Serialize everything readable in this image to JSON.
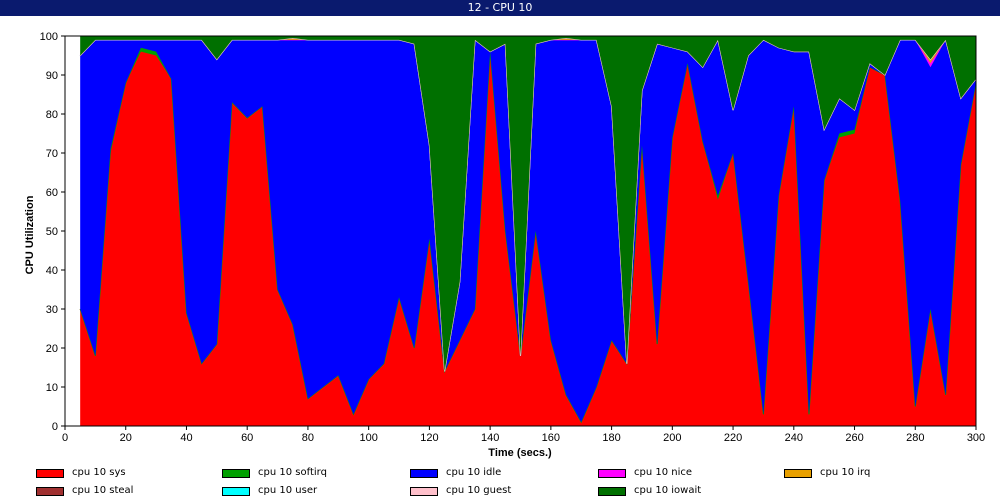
{
  "window": {
    "title": "12 - CPU 10"
  },
  "chart_data": {
    "type": "area",
    "stacked": true,
    "xlabel": "Time (secs.)",
    "ylabel": "CPU Utilization",
    "xlim": [
      0,
      300
    ],
    "ylim": [
      0,
      100
    ],
    "x_ticks": [
      0,
      20,
      40,
      60,
      80,
      100,
      120,
      140,
      160,
      180,
      200,
      220,
      240,
      260,
      280,
      300
    ],
    "y_ticks": [
      0,
      10,
      20,
      30,
      40,
      50,
      60,
      70,
      80,
      90,
      100
    ],
    "x": [
      5,
      10,
      15,
      20,
      25,
      30,
      35,
      40,
      45,
      50,
      55,
      60,
      65,
      70,
      75,
      80,
      85,
      90,
      95,
      100,
      105,
      110,
      115,
      120,
      125,
      130,
      135,
      140,
      145,
      150,
      155,
      160,
      165,
      170,
      175,
      180,
      185,
      190,
      195,
      200,
      205,
      210,
      215,
      220,
      225,
      230,
      235,
      240,
      245,
      250,
      255,
      260,
      265,
      270,
      275,
      280,
      285,
      290,
      295,
      300
    ],
    "series": [
      {
        "name": "cpu 10 sys",
        "color": "#ff0000",
        "values": [
          30,
          18,
          70,
          88,
          96,
          95,
          89,
          29,
          16,
          21,
          83,
          79,
          82,
          35,
          26,
          7,
          10,
          13,
          3,
          12,
          16,
          33,
          20,
          48,
          14,
          22,
          30,
          96,
          50,
          18,
          50,
          22,
          8,
          1,
          10,
          22,
          16,
          72,
          21,
          74,
          93,
          73,
          58,
          70,
          37,
          3,
          59,
          82,
          3,
          63,
          74,
          75,
          92,
          90,
          58,
          5,
          30,
          8,
          67,
          88
        ]
      },
      {
        "name": "cpu 10 softirq",
        "color": "#00a000",
        "values": [
          0,
          0,
          1,
          0,
          1,
          1,
          0,
          0,
          0,
          0,
          0,
          0,
          0,
          0,
          0,
          0,
          0,
          0,
          0,
          0,
          0,
          0,
          0,
          0,
          0,
          0,
          0,
          0,
          0,
          0,
          0,
          0,
          0,
          0,
          0,
          0,
          0,
          0,
          0,
          0,
          0,
          0,
          1,
          0,
          0,
          0,
          0,
          0,
          0,
          0,
          1,
          1,
          0,
          0,
          0,
          0,
          0,
          0,
          0,
          0
        ]
      },
      {
        "name": "cpu 10 idle",
        "color": "#0000ff",
        "values": [
          65,
          81,
          28,
          11,
          2,
          3,
          10,
          70,
          83,
          73,
          16,
          20,
          17,
          64,
          73,
          92,
          89,
          86,
          96,
          87,
          83,
          66,
          78,
          24,
          0,
          15,
          69,
          0,
          48,
          0,
          48,
          77,
          91,
          98,
          89,
          60,
          0,
          14,
          77,
          23,
          3,
          19,
          40,
          11,
          58,
          96,
          38,
          14,
          93,
          13,
          9,
          5,
          1,
          0,
          41,
          94,
          62,
          91,
          17,
          1
        ]
      },
      {
        "name": "cpu 10 nice",
        "color": "#ff00ff",
        "values": [
          0,
          0,
          0,
          0,
          0,
          0,
          0,
          0,
          0,
          0,
          0,
          0,
          0,
          0,
          0,
          0,
          0,
          0,
          0,
          0,
          0,
          0,
          0,
          0,
          0,
          0,
          0,
          0,
          0,
          0,
          0,
          0,
          0,
          0,
          0,
          0,
          0,
          0,
          0,
          0,
          0,
          0,
          0,
          0,
          0,
          0,
          0,
          0,
          0,
          0,
          0,
          0,
          0,
          0,
          0,
          0,
          1,
          0,
          0,
          0
        ]
      },
      {
        "name": "cpu 10 irq",
        "color": "#e8a000",
        "values": [
          0,
          0,
          0,
          0,
          0,
          0,
          0,
          0,
          0,
          0,
          0,
          0,
          0,
          0,
          0.5,
          0,
          0,
          0,
          0,
          0,
          0,
          0,
          0,
          0,
          0,
          0,
          0,
          0,
          0,
          0,
          0,
          0,
          0.5,
          0,
          0,
          0,
          0,
          0,
          0,
          0,
          0,
          0,
          0,
          0,
          0,
          0,
          0,
          0,
          0,
          0,
          0,
          0,
          0,
          0,
          0,
          0,
          1,
          0,
          0,
          0
        ]
      },
      {
        "name": "cpu 10 steal",
        "color": "#a03030",
        "values": [
          0,
          0,
          0,
          0,
          0,
          0,
          0,
          0,
          0,
          0,
          0,
          0,
          0,
          0,
          0,
          0,
          0,
          0,
          0,
          0,
          0,
          0,
          0,
          0,
          0,
          0,
          0,
          0,
          0,
          0,
          0,
          0,
          0,
          0,
          0,
          0,
          0,
          0,
          0,
          0,
          0,
          0,
          0,
          0,
          0,
          0,
          0,
          0,
          0,
          0,
          0,
          0,
          0,
          0,
          0,
          0,
          0,
          0,
          0,
          0
        ]
      },
      {
        "name": "cpu 10 user",
        "color": "#00ffff",
        "values": [
          0,
          0,
          0,
          0,
          0,
          0,
          0,
          0,
          0,
          0,
          0,
          0,
          0,
          0,
          0,
          0,
          0,
          0,
          0,
          0,
          0,
          0,
          0,
          0,
          0,
          0,
          0,
          0,
          0,
          0,
          0,
          0,
          0,
          0,
          0,
          0,
          0,
          0,
          0,
          0,
          0,
          0,
          0,
          0,
          0,
          0,
          0,
          0,
          0,
          0,
          0,
          0,
          0,
          0,
          0,
          0,
          0,
          0,
          0,
          0
        ]
      },
      {
        "name": "cpu 10 guest",
        "color": "#ffc0cb",
        "values": [
          0,
          0,
          0,
          0,
          0,
          0,
          0,
          0,
          0,
          0,
          0,
          0,
          0,
          0,
          0,
          0,
          0,
          0,
          0,
          0,
          0,
          0,
          0,
          0,
          0,
          0,
          0,
          0,
          0,
          0,
          0,
          0,
          0,
          0,
          0,
          0,
          0,
          0,
          0,
          0,
          0,
          0,
          0,
          0,
          0,
          0,
          0,
          0,
          0,
          0,
          0,
          0,
          0,
          0,
          0,
          0,
          0,
          0,
          0,
          0
        ]
      },
      {
        "name": "cpu 10 iowait",
        "color": "#007000",
        "values": [
          5,
          1,
          1,
          1,
          1,
          1,
          1,
          1,
          1,
          6,
          1,
          1,
          1,
          1,
          0.5,
          1,
          1,
          1,
          1,
          1,
          1,
          1,
          2,
          28,
          86,
          63,
          1,
          4,
          2,
          82,
          2,
          1,
          0.5,
          1,
          1,
          18,
          84,
          14,
          2,
          3,
          4,
          8,
          1,
          19,
          5,
          1,
          3,
          4,
          4,
          24,
          16,
          19,
          7,
          10,
          1,
          1,
          6,
          1,
          16,
          11
        ]
      }
    ],
    "grid": false,
    "legend_position": "bottom"
  }
}
